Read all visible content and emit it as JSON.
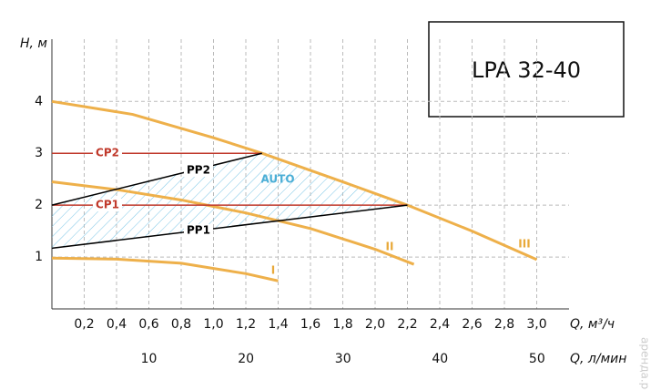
{
  "chart_data": {
    "type": "line",
    "title": "LPA 32-40",
    "y_label": "H, м",
    "x_label": "Q, м³/ч",
    "x2_label": "Q, л/мин",
    "watermark": "аренда.рф",
    "annotation": "AUTO",
    "annotation_color": "#4aaed6",
    "xlim": [
      0,
      3.2
    ],
    "x2lim": [
      0,
      53.3
    ],
    "ylim": [
      0,
      5.2
    ],
    "xticks": [
      {
        "value": 0.2,
        "label": "0,2"
      },
      {
        "value": 0.4,
        "label": "0,4"
      },
      {
        "value": 0.6,
        "label": "0,6"
      },
      {
        "value": 0.8,
        "label": "0,8"
      },
      {
        "value": 1.0,
        "label": "1,0"
      },
      {
        "value": 1.2,
        "label": "1,2"
      },
      {
        "value": 1.4,
        "label": "1,4"
      },
      {
        "value": 1.6,
        "label": "1,6"
      },
      {
        "value": 1.8,
        "label": "1,8"
      },
      {
        "value": 2.0,
        "label": "2,0"
      },
      {
        "value": 2.2,
        "label": "2,2"
      },
      {
        "value": 2.4,
        "label": "2,4"
      },
      {
        "value": 2.6,
        "label": "2,6"
      },
      {
        "value": 2.8,
        "label": "2,8"
      },
      {
        "value": 3.0,
        "label": "3,0"
      }
    ],
    "x2ticks": [
      10,
      20,
      30,
      40,
      50
    ],
    "yticks": [
      1,
      2,
      3,
      4
    ],
    "grid": true,
    "series": [
      {
        "name": "I",
        "color": "#eeb04a",
        "x": [
          0,
          0.4,
          0.8,
          1.2,
          1.4
        ],
        "values": [
          0.98,
          0.96,
          0.88,
          0.68,
          0.54
        ]
      },
      {
        "name": "II",
        "color": "#eeb04a",
        "x": [
          0,
          0.4,
          0.8,
          1.2,
          1.6,
          2.0,
          2.24
        ],
        "values": [
          2.45,
          2.3,
          2.1,
          1.85,
          1.55,
          1.15,
          0.86
        ]
      },
      {
        "name": "III",
        "color": "#eeb04a",
        "x": [
          0,
          0.5,
          1.0,
          1.3,
          1.8,
          2.2,
          2.6,
          3.0
        ],
        "values": [
          4.0,
          3.75,
          3.3,
          3.0,
          2.45,
          2.0,
          1.5,
          0.95
        ]
      },
      {
        "name": "CP2",
        "color": "#c0392b",
        "x": [
          0,
          1.3
        ],
        "values": [
          3.0,
          3.0
        ]
      },
      {
        "name": "CP1",
        "color": "#c0392b",
        "x": [
          0,
          2.2
        ],
        "values": [
          2.0,
          2.0
        ]
      },
      {
        "name": "PP2",
        "color": "#000000",
        "x": [
          0,
          1.3
        ],
        "values": [
          2.0,
          3.0
        ]
      },
      {
        "name": "PP1",
        "color": "#000000",
        "x": [
          0,
          2.2
        ],
        "values": [
          1.17,
          2.0
        ]
      }
    ]
  }
}
